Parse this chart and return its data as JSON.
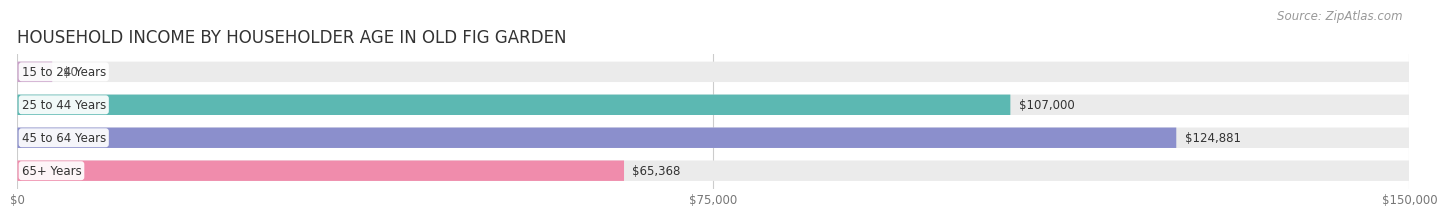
{
  "title": "HOUSEHOLD INCOME BY HOUSEHOLDER AGE IN OLD FIG GARDEN",
  "source": "Source: ZipAtlas.com",
  "categories": [
    "15 to 24 Years",
    "25 to 44 Years",
    "45 to 64 Years",
    "65+ Years"
  ],
  "values": [
    0,
    107000,
    124881,
    65368
  ],
  "bar_colors": [
    "#c9a0c8",
    "#5cb8b2",
    "#8b8fcc",
    "#f08cac"
  ],
  "bar_bg_color": "#ebebeb",
  "label_texts": [
    "$0",
    "$107,000",
    "$124,881",
    "$65,368"
  ],
  "x_ticks": [
    0,
    75000,
    150000
  ],
  "x_tick_labels": [
    "$0",
    "$75,000",
    "$150,000"
  ],
  "xlim": [
    0,
    150000
  ],
  "background_color": "#ffffff",
  "title_fontsize": 12,
  "label_fontsize": 8.5,
  "tick_fontsize": 8.5,
  "source_fontsize": 8.5,
  "bar_height": 0.62
}
